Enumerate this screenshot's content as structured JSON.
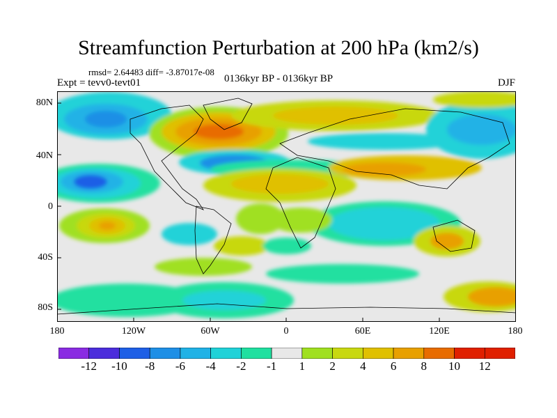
{
  "title": "Streamfunction Perturbation at 200 hPa (km2/s)",
  "stats": "rmsd= 2.64483 diff= -3.87017e-08",
  "experiment": "Expt = tevv0-tevt01",
  "period": "0136kyr BP - 0136kyr BP",
  "season": "DJF",
  "colors": {
    "ocean_land_bg": "#e8e8e8",
    "palette": [
      "#8a2be2",
      "#4b2ddc",
      "#1e5fe6",
      "#1e8fe6",
      "#20b2e6",
      "#20d2d8",
      "#20e0a0",
      "#e8e8e8",
      "#a0e020",
      "#c8d810",
      "#e0c000",
      "#e8a000",
      "#e86c00",
      "#e02000"
    ]
  },
  "chart_data": {
    "type": "heatmap",
    "title": "Streamfunction Perturbation at 200 hPa (km2/s)",
    "x_ticks": [
      "180",
      "120W",
      "60W",
      "0",
      "60E",
      "120E",
      "180"
    ],
    "y_ticks": [
      "80N",
      "40N",
      "0",
      "40S",
      "80S"
    ],
    "xlim": [
      -180,
      180
    ],
    "ylim": [
      -90,
      90
    ],
    "colorbar": {
      "levels": [
        "-12",
        "-10",
        "-8",
        "-6",
        "-4",
        "-2",
        "-1",
        "1",
        "2",
        "4",
        "6",
        "8",
        "10",
        "12"
      ],
      "colors": [
        "#8a2be2",
        "#4b2ddc",
        "#1e5fe6",
        "#1e8fe6",
        "#20b2e6",
        "#20d2d8",
        "#20e0a0",
        "#e8e8e8",
        "#a0e020",
        "#c8d810",
        "#e0c000",
        "#e8a000",
        "#e86c00",
        "#e02000",
        "#e02000"
      ]
    },
    "features": [
      {
        "lon": -160,
        "lat": 60,
        "value": -6
      },
      {
        "lon": -150,
        "lat": 23,
        "value": -8
      },
      {
        "lon": -140,
        "lat": -18,
        "value": 6
      },
      {
        "lon": -60,
        "lat": 60,
        "value": 8
      },
      {
        "lon": -50,
        "lat": 32,
        "value": -6
      },
      {
        "lon": 0,
        "lat": 22,
        "value": 4
      },
      {
        "lon": 60,
        "lat": -15,
        "value": -4
      },
      {
        "lon": 60,
        "lat": 62,
        "value": 4
      },
      {
        "lon": 150,
        "lat": 35,
        "value": -4
      },
      {
        "lon": 140,
        "lat": 72,
        "value": 2
      },
      {
        "lon": -80,
        "lat": -72,
        "value": -2
      },
      {
        "lon": 160,
        "lat": -68,
        "value": 6
      }
    ]
  }
}
